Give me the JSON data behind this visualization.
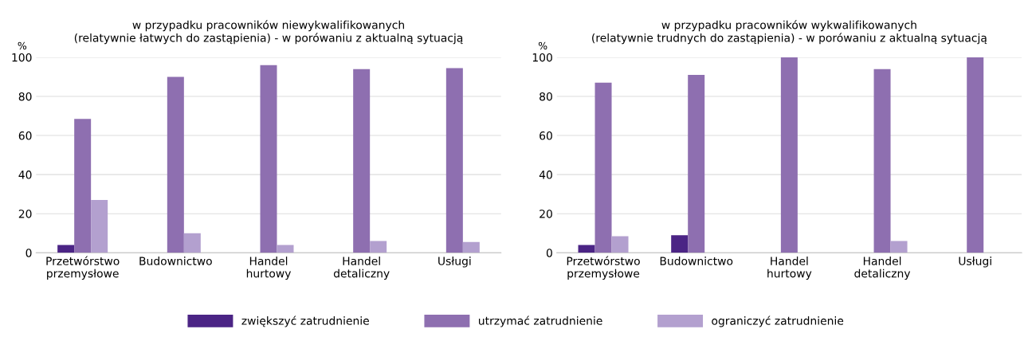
{
  "chart_data": [
    {
      "type": "bar",
      "title": "w przypadku pracowników niewykwalifikowanych\n(relatywnie łatwych do zastąpienia) - w porówaniu z aktualną sytuacją",
      "ylabel": "%",
      "categories": [
        "Przetwórstwo\nprzemysłowe",
        "Budownictwo",
        "Handel\nhurtowy",
        "Handel\ndetaliczny",
        "Usługi"
      ],
      "series": [
        {
          "name": "zwiększyć zatrudnienie",
          "color": "#4b2485",
          "values": [
            4,
            null,
            null,
            null,
            null
          ]
        },
        {
          "name": "utrzymać zatrudnienie",
          "color": "#8e6fb0",
          "values": [
            68.5,
            90,
            96,
            94,
            94.5
          ]
        },
        {
          "name": "ograniczyć zatrudnienie",
          "color": "#b3a0cf",
          "values": [
            27,
            10,
            4,
            6,
            5.5
          ]
        }
      ],
      "ylim": [
        0,
        100
      ],
      "yticks": [
        0,
        20,
        40,
        60,
        80,
        100
      ],
      "grid": "y",
      "legend": "bottom"
    },
    {
      "type": "bar",
      "title": "w przypadku pracowników wykwalifikowanych\n(relatywnie trudnych do zastąpienia) - w porówaniu z aktualną sytuacją",
      "ylabel": "%",
      "categories": [
        "Przetwórstwo\nprzemysłowe",
        "Budownictwo",
        "Handel\nhurtowy",
        "Handel\ndetaliczny",
        "Usługi"
      ],
      "series": [
        {
          "name": "zwiększyć zatrudnienie",
          "color": "#4b2485",
          "values": [
            4,
            9,
            null,
            null,
            null
          ]
        },
        {
          "name": "utrzymać zatrudnienie",
          "color": "#8e6fb0",
          "values": [
            87,
            91,
            100,
            94,
            100
          ]
        },
        {
          "name": "ograniczyć zatrudnienie",
          "color": "#b3a0cf",
          "values": [
            8.5,
            null,
            null,
            6,
            null
          ]
        }
      ],
      "ylim": [
        0,
        100
      ],
      "yticks": [
        0,
        20,
        40,
        60,
        80,
        100
      ],
      "grid": "y",
      "legend": "bottom"
    }
  ]
}
